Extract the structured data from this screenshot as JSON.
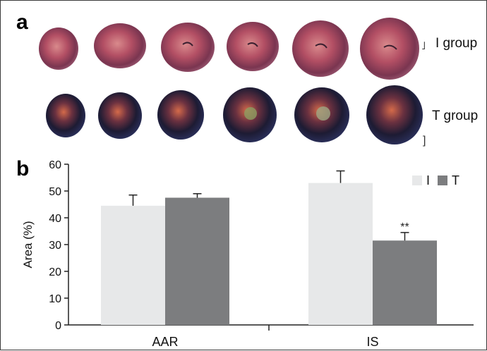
{
  "panel_a": {
    "letter": "a",
    "rows": [
      {
        "label": "I group",
        "stain": "ttc-red",
        "count": 6
      },
      {
        "label": "T group",
        "stain": "evans-blue",
        "count": 6
      }
    ]
  },
  "panel_b": {
    "letter": "b"
  },
  "colors": {
    "series_I": "#e7e8e9",
    "series_T": "#7c7d7f",
    "axis": "#222222"
  },
  "chart_data": {
    "type": "bar",
    "categories": [
      "AAR",
      "IS"
    ],
    "series": [
      {
        "name": "I",
        "values": [
          44.5,
          53
        ],
        "errors": [
          4,
          4.5
        ]
      },
      {
        "name": "T",
        "values": [
          47.5,
          31.5
        ],
        "errors": [
          1.5,
          3
        ]
      }
    ],
    "ylabel": "Area (%)",
    "xlabel": "",
    "ylim": [
      0,
      60
    ],
    "yticks": [
      0,
      10,
      20,
      30,
      40,
      50,
      60
    ],
    "annotations": [
      {
        "category": "IS",
        "series": "T",
        "text": "**"
      }
    ],
    "legend": "top-right",
    "grid": false
  }
}
